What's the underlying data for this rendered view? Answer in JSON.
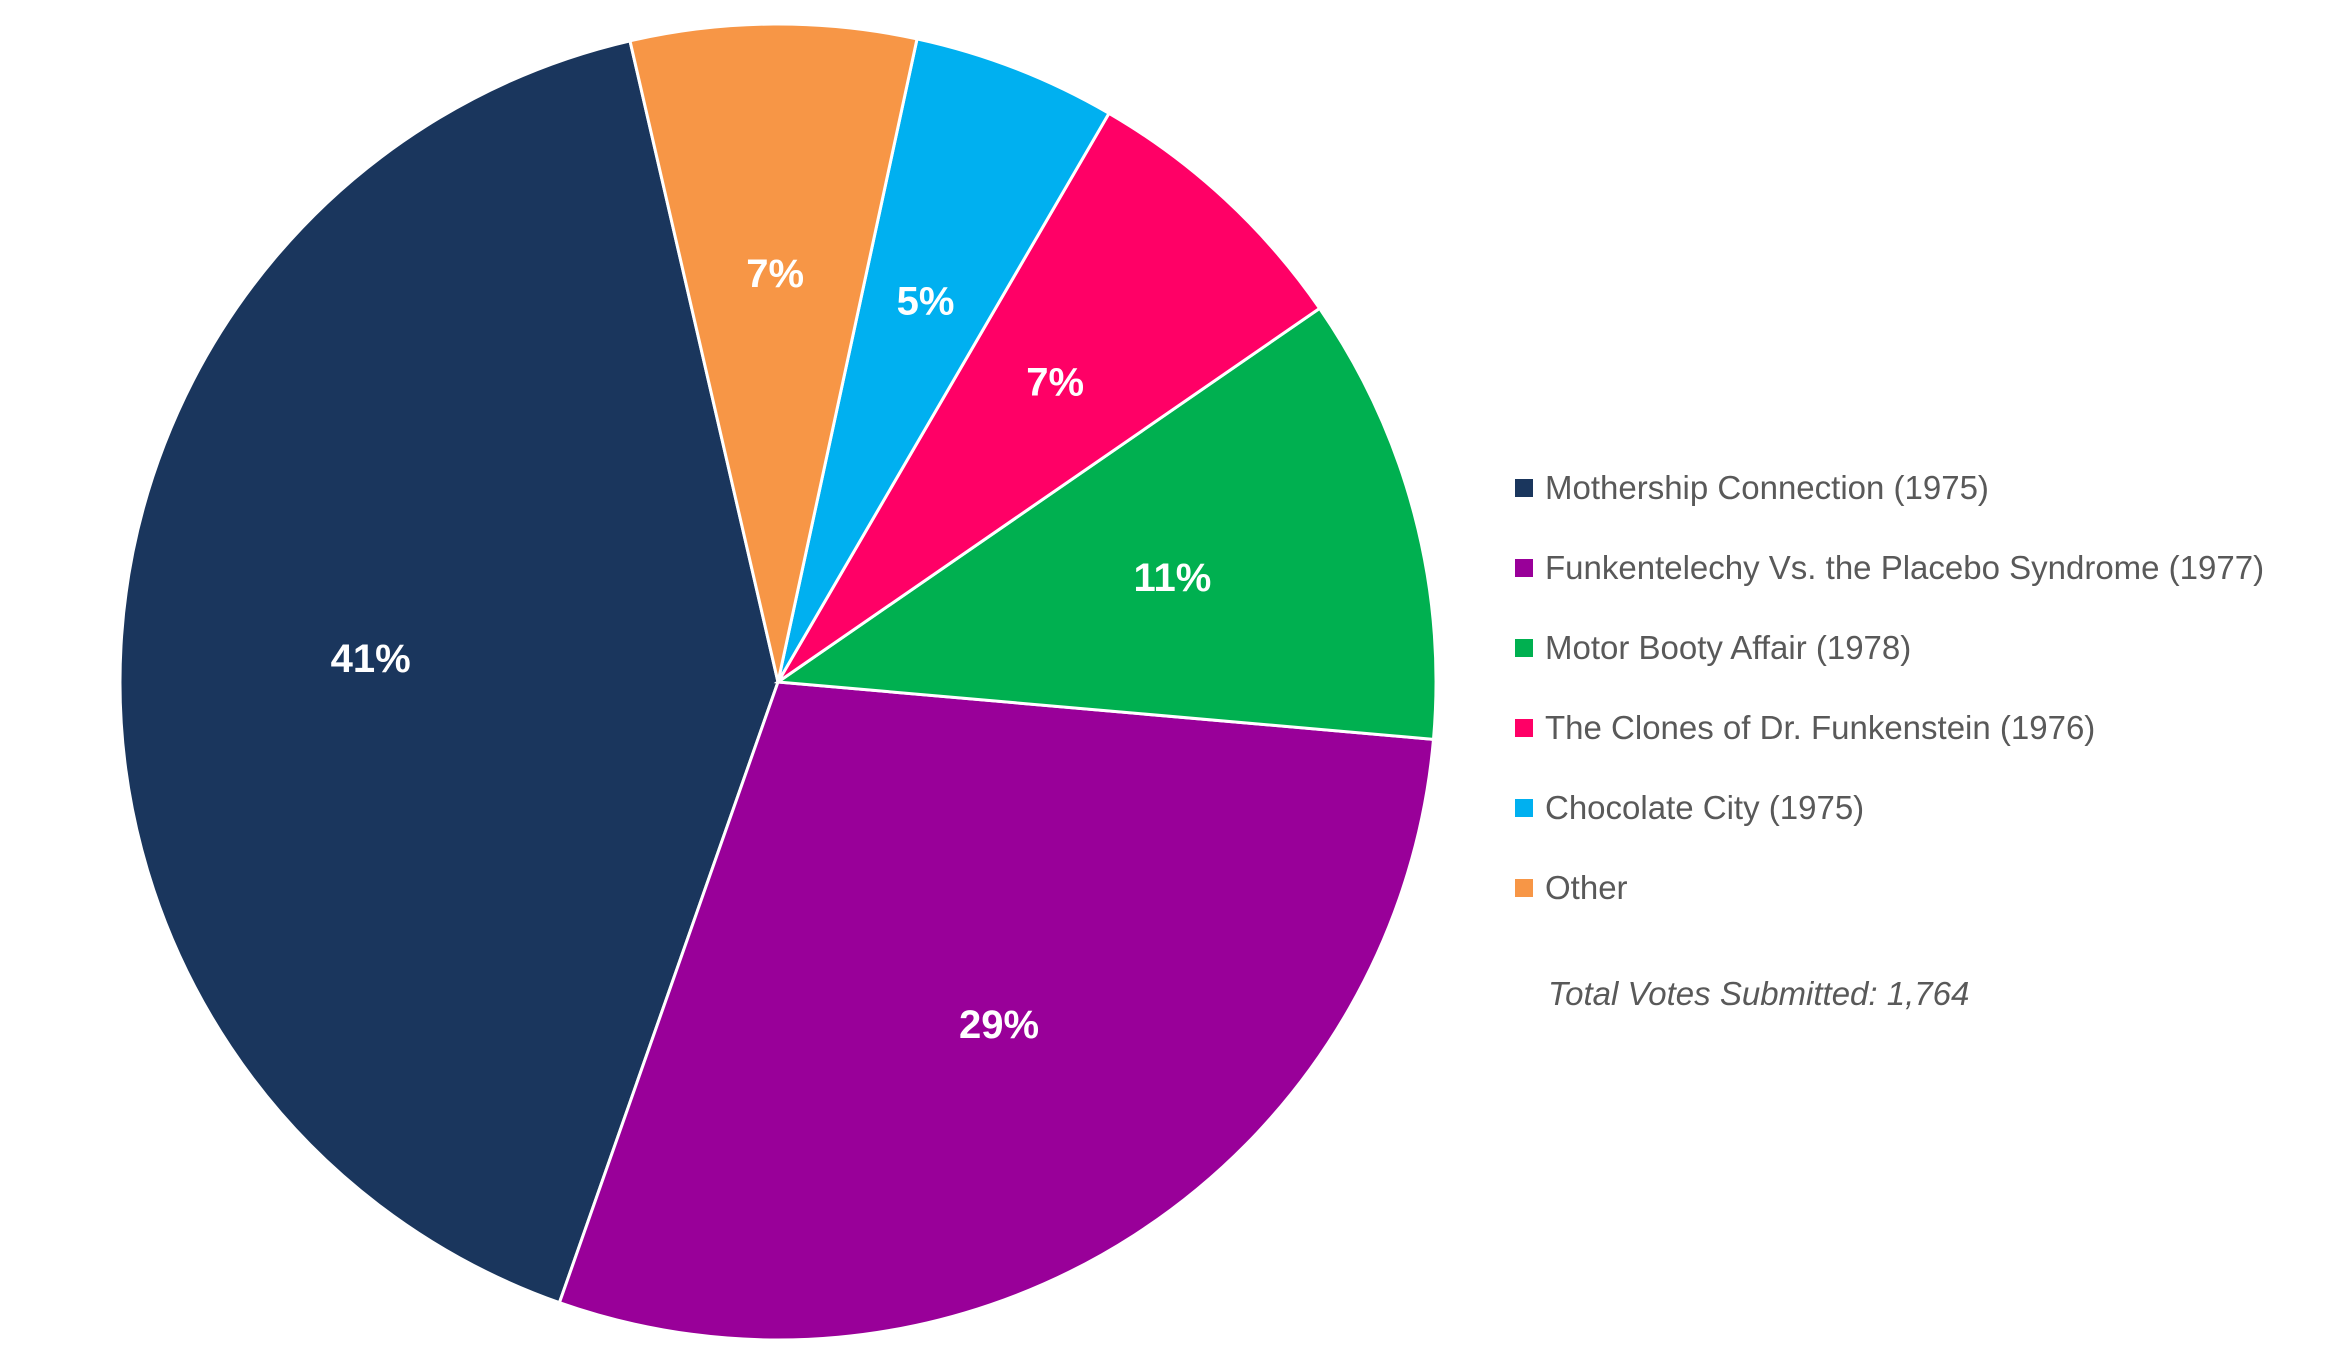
{
  "chart_data": {
    "type": "pie",
    "title": "",
    "slices": [
      {
        "label": "Mothership Connection (1975)",
        "value": 41,
        "display": "41%",
        "color": "#1A365D"
      },
      {
        "label": "Funkentelechy Vs. the Placebo Syndrome (1977)",
        "value": 29,
        "display": "29%",
        "color": "#990099"
      },
      {
        "label": "Motor Booty Affair (1978)",
        "value": 11,
        "display": "11%",
        "color": "#00B050"
      },
      {
        "label": "The Clones of Dr. Funkenstein (1976)",
        "value": 7,
        "display": "7%",
        "color": "#FF0066"
      },
      {
        "label": "Chocolate City (1975)",
        "value": 5,
        "display": "5%",
        "color": "#00B0F0"
      },
      {
        "label": "Other",
        "value": 7,
        "display": "7%",
        "color": "#F79646"
      }
    ],
    "legend_position": "right"
  },
  "annotation": {
    "total_votes": "Total Votes Submitted: 1,764"
  }
}
